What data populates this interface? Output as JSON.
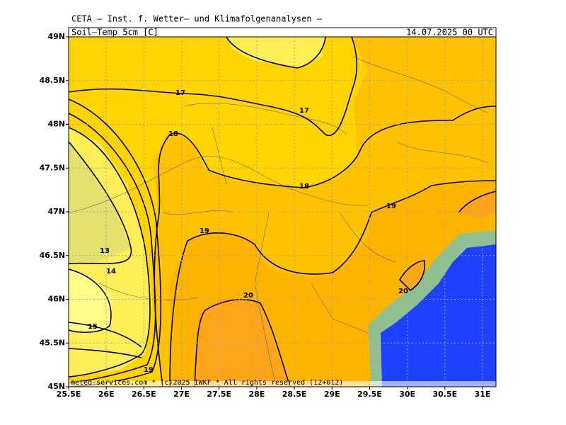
{
  "header": {
    "title": "CETA — Inst. f. Wetter— und Klimafolgenanalysen —",
    "field": "Soil—Temp_5cm_[C]",
    "valid": "14.07.2025 00 UTC"
  },
  "footer": "meteo-services.com * (c)2025 IWKF * All rights reserved (12+012)",
  "map": {
    "lon_labels": [
      "25.5E",
      "26E",
      "26.5E",
      "27E",
      "27.5E",
      "28E",
      "28.5E",
      "29E",
      "29.5E",
      "30E",
      "30.5E",
      "31E"
    ],
    "lat_labels": [
      "49N",
      "48.5N",
      "48N",
      "47.5N",
      "47N",
      "46.5N",
      "46N",
      "45.5N",
      "45N"
    ],
    "contour_labels": [
      "17",
      "17",
      "18",
      "18",
      "19",
      "19",
      "13",
      "14",
      "20",
      "20",
      "15",
      "19"
    ]
  }
}
